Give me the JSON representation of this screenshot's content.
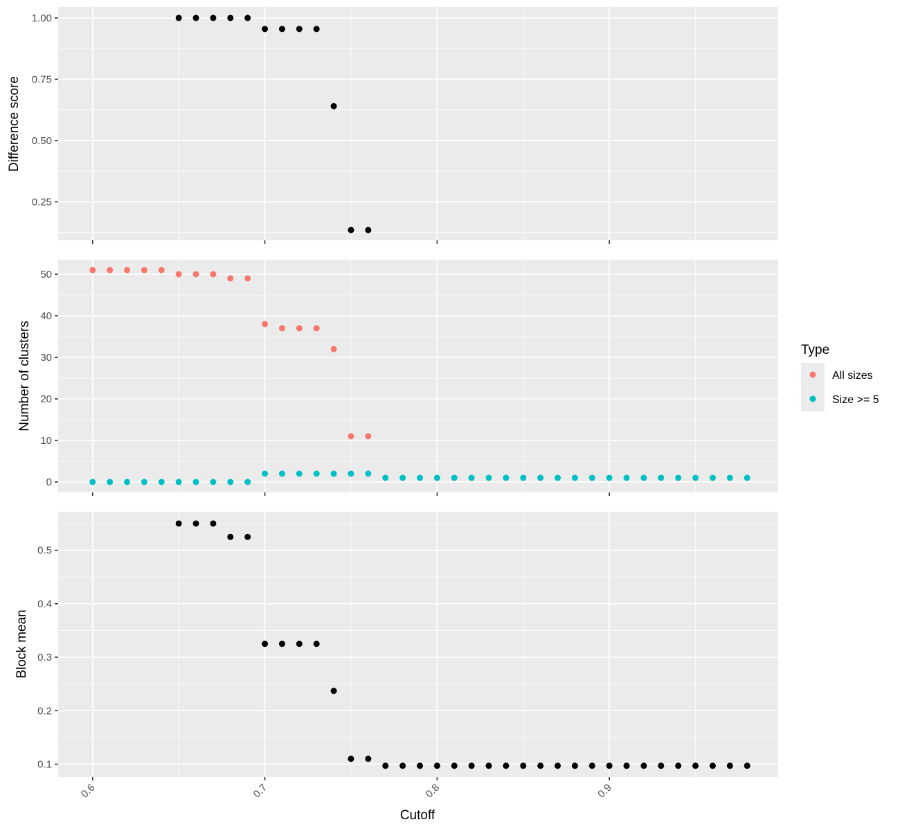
{
  "chart_data": [
    {
      "type": "scatter",
      "panel": "top",
      "ylabel": "Difference score",
      "xlim": [
        0.58,
        0.998
      ],
      "ylim": [
        0.093,
        1.045
      ],
      "x_ticks": [
        0.6,
        0.7,
        0.8,
        0.9
      ],
      "y_ticks": [
        0.25,
        0.5,
        0.75,
        1.0
      ],
      "y_tick_labels": [
        "0.25",
        "0.50",
        "0.75",
        "1.00"
      ],
      "color": "#000000",
      "points": [
        [
          0.65,
          1.0
        ],
        [
          0.66,
          1.0
        ],
        [
          0.67,
          1.0
        ],
        [
          0.68,
          1.0
        ],
        [
          0.69,
          1.0
        ],
        [
          0.7,
          0.955
        ],
        [
          0.71,
          0.955
        ],
        [
          0.72,
          0.955
        ],
        [
          0.73,
          0.955
        ],
        [
          0.74,
          0.64
        ],
        [
          0.75,
          0.135
        ],
        [
          0.76,
          0.135
        ]
      ]
    },
    {
      "type": "scatter",
      "panel": "middle",
      "ylabel": "Number of clusters",
      "xlim": [
        0.58,
        0.998
      ],
      "ylim": [
        -2.5,
        53.5
      ],
      "x_ticks": [
        0.6,
        0.7,
        0.8,
        0.9
      ],
      "y_ticks": [
        0,
        10,
        20,
        30,
        40,
        50
      ],
      "y_tick_labels": [
        "0",
        "10",
        "20",
        "30",
        "40",
        "50"
      ],
      "series": [
        {
          "name": "All sizes",
          "color": "#F8766D",
          "points": [
            [
              0.6,
              51
            ],
            [
              0.61,
              51
            ],
            [
              0.62,
              51
            ],
            [
              0.63,
              51
            ],
            [
              0.64,
              51
            ],
            [
              0.65,
              50
            ],
            [
              0.66,
              50
            ],
            [
              0.67,
              50
            ],
            [
              0.68,
              49
            ],
            [
              0.69,
              49
            ],
            [
              0.7,
              38
            ],
            [
              0.71,
              37
            ],
            [
              0.72,
              37
            ],
            [
              0.73,
              37
            ],
            [
              0.74,
              32
            ],
            [
              0.75,
              11
            ],
            [
              0.76,
              11
            ]
          ]
        },
        {
          "name": "Size >= 5",
          "color": "#00BFC4",
          "points": [
            [
              0.6,
              0
            ],
            [
              0.61,
              0
            ],
            [
              0.62,
              0
            ],
            [
              0.63,
              0
            ],
            [
              0.64,
              0
            ],
            [
              0.65,
              0
            ],
            [
              0.66,
              0
            ],
            [
              0.67,
              0
            ],
            [
              0.68,
              0
            ],
            [
              0.69,
              0
            ],
            [
              0.7,
              2
            ],
            [
              0.71,
              2
            ],
            [
              0.72,
              2
            ],
            [
              0.73,
              2
            ],
            [
              0.74,
              2
            ],
            [
              0.75,
              2
            ],
            [
              0.76,
              2
            ],
            [
              0.77,
              1
            ],
            [
              0.78,
              1
            ],
            [
              0.79,
              1
            ],
            [
              0.8,
              1
            ],
            [
              0.81,
              1
            ],
            [
              0.82,
              1
            ],
            [
              0.83,
              1
            ],
            [
              0.84,
              1
            ],
            [
              0.85,
              1
            ],
            [
              0.86,
              1
            ],
            [
              0.87,
              1
            ],
            [
              0.88,
              1
            ],
            [
              0.89,
              1
            ],
            [
              0.9,
              1
            ],
            [
              0.91,
              1
            ],
            [
              0.92,
              1
            ],
            [
              0.93,
              1
            ],
            [
              0.94,
              1
            ],
            [
              0.95,
              1
            ],
            [
              0.96,
              1
            ],
            [
              0.97,
              1
            ],
            [
              0.98,
              1
            ]
          ]
        }
      ]
    },
    {
      "type": "scatter",
      "panel": "bottom",
      "ylabel": "Block mean",
      "xlabel": "Cutoff",
      "xlim": [
        0.58,
        0.998
      ],
      "ylim": [
        0.076,
        0.572
      ],
      "x_ticks": [
        0.6,
        0.7,
        0.8,
        0.9
      ],
      "x_tick_labels": [
        "0.6",
        "0.7",
        "0.8",
        "0.9"
      ],
      "y_ticks": [
        0.1,
        0.2,
        0.3,
        0.4,
        0.5
      ],
      "y_tick_labels": [
        "0.1",
        "0.2",
        "0.3",
        "0.4",
        "0.5"
      ],
      "color": "#000000",
      "points": [
        [
          0.65,
          0.55
        ],
        [
          0.66,
          0.55
        ],
        [
          0.67,
          0.55
        ],
        [
          0.68,
          0.525
        ],
        [
          0.69,
          0.525
        ],
        [
          0.7,
          0.325
        ],
        [
          0.71,
          0.325
        ],
        [
          0.72,
          0.325
        ],
        [
          0.73,
          0.325
        ],
        [
          0.74,
          0.237
        ],
        [
          0.75,
          0.11
        ],
        [
          0.76,
          0.11
        ],
        [
          0.77,
          0.097
        ],
        [
          0.78,
          0.097
        ],
        [
          0.79,
          0.097
        ],
        [
          0.8,
          0.097
        ],
        [
          0.81,
          0.097
        ],
        [
          0.82,
          0.097
        ],
        [
          0.83,
          0.097
        ],
        [
          0.84,
          0.097
        ],
        [
          0.85,
          0.097
        ],
        [
          0.86,
          0.097
        ],
        [
          0.87,
          0.097
        ],
        [
          0.88,
          0.097
        ],
        [
          0.89,
          0.097
        ],
        [
          0.9,
          0.097
        ],
        [
          0.91,
          0.097
        ],
        [
          0.92,
          0.097
        ],
        [
          0.93,
          0.097
        ],
        [
          0.94,
          0.097
        ],
        [
          0.95,
          0.097
        ],
        [
          0.96,
          0.097
        ],
        [
          0.97,
          0.097
        ],
        [
          0.98,
          0.097
        ]
      ]
    }
  ],
  "legend": {
    "title": "Type",
    "placement": "right",
    "items": [
      {
        "label": "All sizes",
        "color": "#F8766D"
      },
      {
        "label": "Size >= 5",
        "color": "#00BFC4"
      }
    ]
  }
}
